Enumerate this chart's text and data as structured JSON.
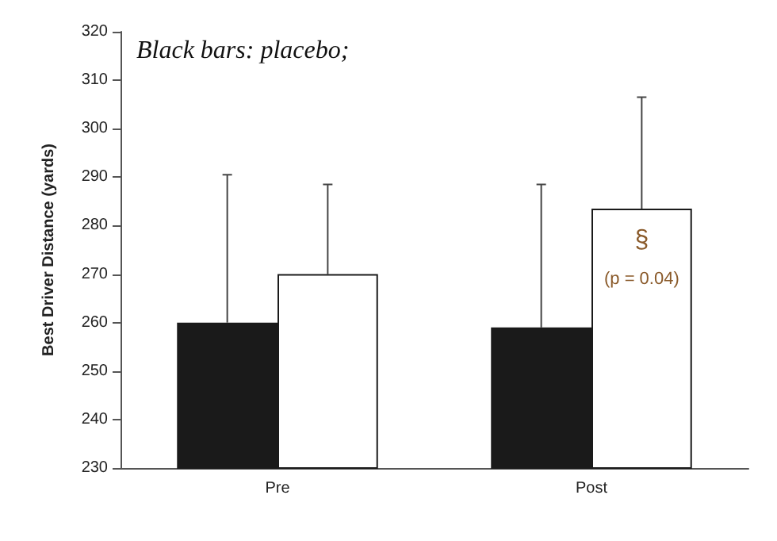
{
  "chart_data": {
    "type": "bar",
    "ylabel": "Best Driver Distance (yards)",
    "categories": [
      "Pre",
      "Post"
    ],
    "series": [
      {
        "color": "#1a1a1a",
        "values": [
          260,
          259
        ],
        "errors": [
          [
            260,
            290.5
          ],
          [
            259,
            288.5
          ]
        ]
      },
      {
        "color": "#ffffff",
        "values": [
          270,
          283.5
        ],
        "errors": [
          [
            270,
            288.5
          ],
          [
            283.5,
            306.5
          ]
        ]
      }
    ],
    "ylim": [
      230,
      320
    ],
    "yticks": [
      230,
      240,
      250,
      260,
      270,
      280,
      290,
      300,
      310,
      320
    ],
    "grid": false,
    "annotations": [
      "Black bars: placebo;",
      {
        "text": "§",
        "x": "Post",
        "y": 277
      },
      {
        "text": "(p = 0.04)",
        "x": "Post",
        "y": 269
      }
    ]
  }
}
